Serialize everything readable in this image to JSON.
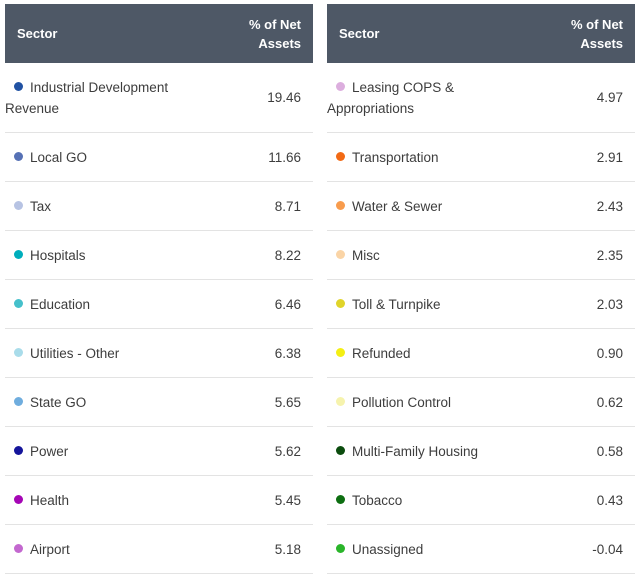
{
  "colors": {
    "header_bg": "#4e5866",
    "header_text": "#ffffff",
    "row_text": "#3d3d3d",
    "row_border": "#e3e3e3",
    "background": "#ffffff"
  },
  "tables": [
    {
      "headers": {
        "sector": "Sector",
        "assets": "% of Net Assets"
      },
      "rows": [
        {
          "label": "Industrial Development Revenue",
          "value": "19.46",
          "color": "#2152a3"
        },
        {
          "label": "Local GO",
          "value": "11.66",
          "color": "#5671b5"
        },
        {
          "label": "Tax",
          "value": "8.71",
          "color": "#b7c3e3"
        },
        {
          "label": "Hospitals",
          "value": "8.22",
          "color": "#00aebc"
        },
        {
          "label": "Education",
          "value": "6.46",
          "color": "#45c0cb"
        },
        {
          "label": "Utilities - Other",
          "value": "6.38",
          "color": "#a9dcea"
        },
        {
          "label": "State GO",
          "value": "5.65",
          "color": "#6fadde"
        },
        {
          "label": "Power",
          "value": "5.62",
          "color": "#15159b"
        },
        {
          "label": "Health",
          "value": "5.45",
          "color": "#a506b5"
        },
        {
          "label": "Airport",
          "value": "5.18",
          "color": "#c368cf"
        }
      ]
    },
    {
      "headers": {
        "sector": "Sector",
        "assets": "% of Net Assets"
      },
      "rows": [
        {
          "label": "Leasing COPS & Appropriations",
          "value": "4.97",
          "color": "#dcaede"
        },
        {
          "label": "Transportation",
          "value": "2.91",
          "color": "#f26a15"
        },
        {
          "label": "Water & Sewer",
          "value": "2.43",
          "color": "#f89c4d"
        },
        {
          "label": "Misc",
          "value": "2.35",
          "color": "#fad4a6"
        },
        {
          "label": "Toll & Turnpike",
          "value": "2.03",
          "color": "#e0d42a"
        },
        {
          "label": "Refunded",
          "value": "0.90",
          "color": "#f4ef13"
        },
        {
          "label": "Pollution Control",
          "value": "0.62",
          "color": "#f6f3ad"
        },
        {
          "label": "Multi-Family Housing",
          "value": "0.58",
          "color": "#0b4c0e"
        },
        {
          "label": "Tobacco",
          "value": "0.43",
          "color": "#0d6e11"
        },
        {
          "label": "Unassigned",
          "value": "-0.04",
          "color": "#2ab52a"
        }
      ]
    }
  ],
  "chart_data": {
    "type": "table",
    "tables": [
      {
        "columns": [
          "Sector",
          "% of Net Assets"
        ],
        "rows": [
          [
            "Industrial Development Revenue",
            19.46
          ],
          [
            "Local GO",
            11.66
          ],
          [
            "Tax",
            8.71
          ],
          [
            "Hospitals",
            8.22
          ],
          [
            "Education",
            6.46
          ],
          [
            "Utilities - Other",
            6.38
          ],
          [
            "State GO",
            5.65
          ],
          [
            "Power",
            5.62
          ],
          [
            "Health",
            5.45
          ],
          [
            "Airport",
            5.18
          ]
        ]
      },
      {
        "columns": [
          "Sector",
          "% of Net Assets"
        ],
        "rows": [
          [
            "Leasing COPS & Appropriations",
            4.97
          ],
          [
            "Transportation",
            2.91
          ],
          [
            "Water & Sewer",
            2.43
          ],
          [
            "Misc",
            2.35
          ],
          [
            "Toll & Turnpike",
            2.03
          ],
          [
            "Refunded",
            0.9
          ],
          [
            "Pollution Control",
            0.62
          ],
          [
            "Multi-Family Housing",
            0.58
          ],
          [
            "Tobacco",
            0.43
          ],
          [
            "Unassigned",
            -0.04
          ]
        ]
      }
    ]
  }
}
